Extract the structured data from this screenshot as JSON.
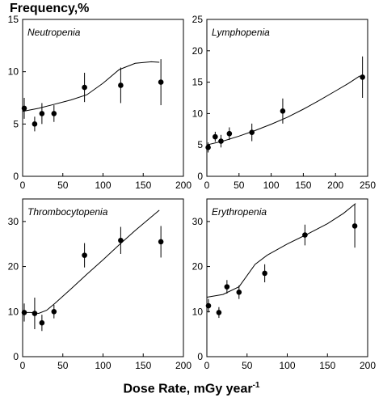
{
  "figure": {
    "ylabel": "Frequency,%",
    "xlabel_main": "Dose Rate, mGy year",
    "xlabel_sup": "-1"
  },
  "chart_data": [
    {
      "type": "scatter",
      "title": "Neutropenia",
      "xlim": [
        0,
        200
      ],
      "ylim": [
        0,
        15
      ],
      "xticks": [
        0,
        50,
        100,
        150,
        200
      ],
      "yticks": [
        0,
        5,
        10,
        15
      ],
      "points": [
        {
          "x": 2,
          "y": 6.5,
          "err": 1.0
        },
        {
          "x": 15,
          "y": 5.0,
          "err": 0.7
        },
        {
          "x": 24,
          "y": 6.0,
          "err": 1.0
        },
        {
          "x": 39,
          "y": 6.0,
          "err": 0.8
        },
        {
          "x": 77,
          "y": 8.5,
          "err": 1.4
        },
        {
          "x": 122,
          "y": 8.7,
          "err": 1.7
        },
        {
          "x": 172,
          "y": 9.0,
          "err": 2.2
        }
      ],
      "curve": [
        [
          0,
          6.2
        ],
        [
          20,
          6.5
        ],
        [
          40,
          6.9
        ],
        [
          60,
          7.3
        ],
        [
          80,
          7.8
        ],
        [
          100,
          8.9
        ],
        [
          120,
          10.2
        ],
        [
          140,
          10.8
        ],
        [
          160,
          10.95
        ],
        [
          170,
          10.9
        ]
      ]
    },
    {
      "type": "scatter",
      "title": "Lymphopenia",
      "xlim": [
        0,
        250
      ],
      "ylim": [
        0,
        25
      ],
      "xticks": [
        0,
        50,
        100,
        150,
        200,
        250
      ],
      "yticks": [
        0,
        5,
        10,
        15,
        20,
        25
      ],
      "points": [
        {
          "x": 2,
          "y": 4.6,
          "err": 0.8
        },
        {
          "x": 13,
          "y": 6.3,
          "err": 0.8
        },
        {
          "x": 22,
          "y": 5.6,
          "err": 1.0
        },
        {
          "x": 35,
          "y": 6.8,
          "err": 1.0
        },
        {
          "x": 70,
          "y": 7.0,
          "err": 1.4
        },
        {
          "x": 118,
          "y": 10.4,
          "err": 2.0
        },
        {
          "x": 242,
          "y": 15.8,
          "err": 3.3
        }
      ],
      "curve": [
        [
          0,
          5.0
        ],
        [
          25,
          5.6
        ],
        [
          50,
          6.4
        ],
        [
          75,
          7.3
        ],
        [
          100,
          8.3
        ],
        [
          125,
          9.4
        ],
        [
          150,
          10.7
        ],
        [
          175,
          12.1
        ],
        [
          200,
          13.6
        ],
        [
          220,
          14.8
        ],
        [
          238,
          16.0
        ]
      ]
    },
    {
      "type": "scatter",
      "title": "Thrombocytopenia",
      "xlim": [
        0,
        200
      ],
      "ylim": [
        0,
        35
      ],
      "xticks": [
        0,
        50,
        100,
        150,
        200
      ],
      "yticks": [
        0,
        10,
        20,
        30
      ],
      "points": [
        {
          "x": 2,
          "y": 9.8,
          "err": 2.0
        },
        {
          "x": 15,
          "y": 9.6,
          "err": 3.5
        },
        {
          "x": 24,
          "y": 7.5,
          "err": 1.8
        },
        {
          "x": 39,
          "y": 10.0,
          "err": 1.5
        },
        {
          "x": 77,
          "y": 22.5,
          "err": 2.7
        },
        {
          "x": 122,
          "y": 25.8,
          "err": 3.0
        },
        {
          "x": 172,
          "y": 25.5,
          "err": 3.5
        }
      ],
      "curve": [
        [
          0,
          9.8
        ],
        [
          10,
          9.8
        ],
        [
          20,
          9.6
        ],
        [
          30,
          10.3
        ],
        [
          40,
          11.8
        ],
        [
          60,
          15.0
        ],
        [
          80,
          18.3
        ],
        [
          100,
          21.5
        ],
        [
          120,
          24.8
        ],
        [
          140,
          28.0
        ],
        [
          160,
          31.0
        ],
        [
          170,
          32.5
        ]
      ]
    },
    {
      "type": "scatter",
      "title": "Erythropenia",
      "xlim": [
        0,
        200
      ],
      "ylim": [
        0,
        35
      ],
      "xticks": [
        0,
        50,
        100,
        150,
        200
      ],
      "yticks": [
        0,
        10,
        20,
        30
      ],
      "points": [
        {
          "x": 2,
          "y": 11.3,
          "err": 1.5
        },
        {
          "x": 15,
          "y": 9.8,
          "err": 1.2
        },
        {
          "x": 25,
          "y": 15.5,
          "err": 1.5
        },
        {
          "x": 40,
          "y": 14.3,
          "err": 1.5
        },
        {
          "x": 72,
          "y": 18.5,
          "err": 2.0
        },
        {
          "x": 122,
          "y": 27.0,
          "err": 2.3
        },
        {
          "x": 184,
          "y": 29.0,
          "err": 4.8
        }
      ],
      "curve": [
        [
          0,
          13.2
        ],
        [
          20,
          13.8
        ],
        [
          40,
          15.5
        ],
        [
          50,
          18.0
        ],
        [
          60,
          20.5
        ],
        [
          75,
          22.5
        ],
        [
          100,
          25.0
        ],
        [
          125,
          27.2
        ],
        [
          150,
          29.5
        ],
        [
          170,
          31.8
        ],
        [
          185,
          34.0
        ]
      ]
    }
  ]
}
